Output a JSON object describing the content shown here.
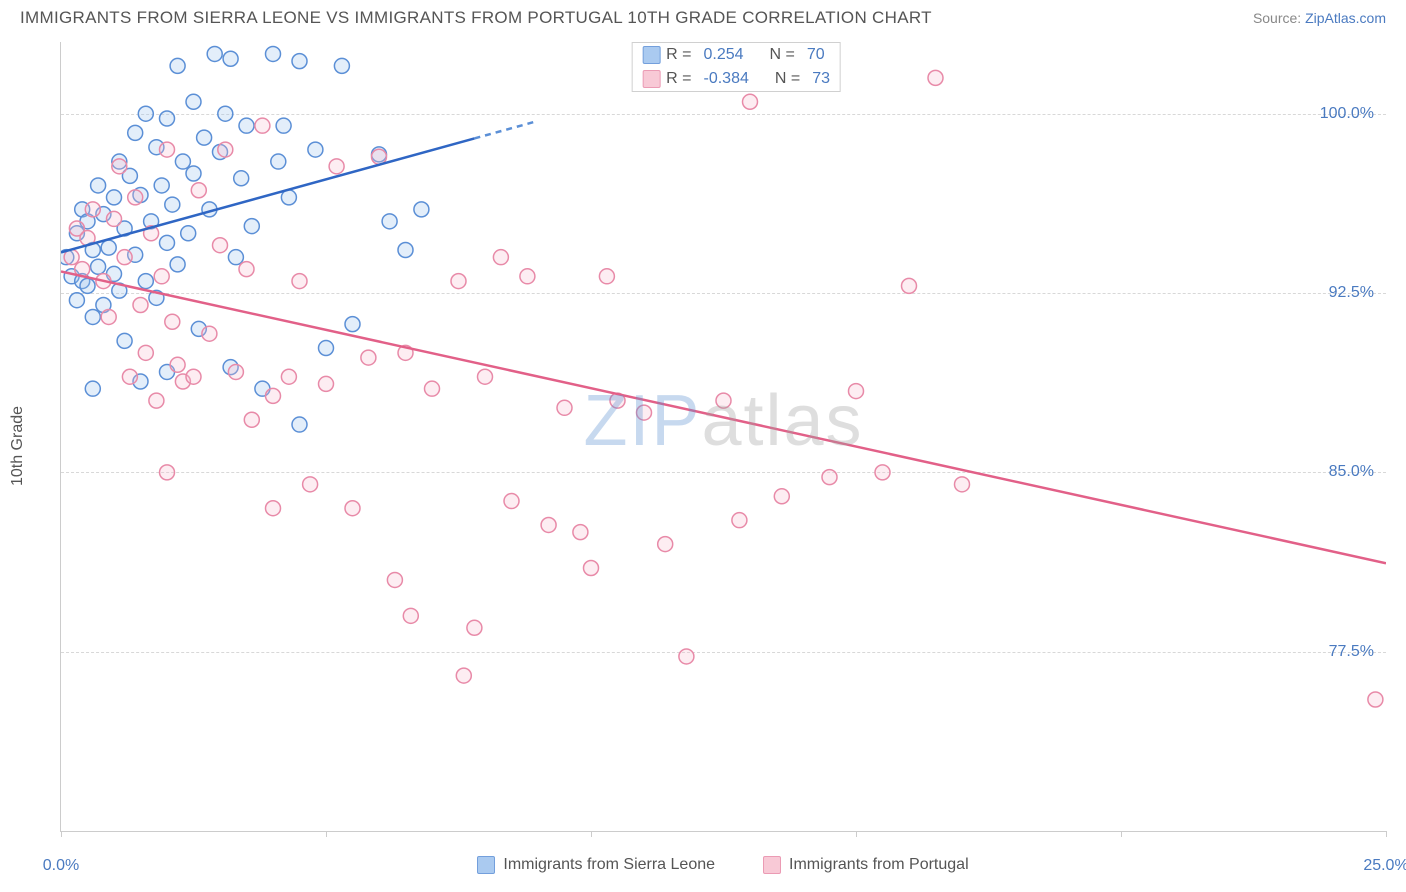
{
  "title": "IMMIGRANTS FROM SIERRA LEONE VS IMMIGRANTS FROM PORTUGAL 10TH GRADE CORRELATION CHART",
  "source_label": "Source:",
  "source_name": "ZipAtlas.com",
  "y_axis_title": "10th Grade",
  "watermark": {
    "part1": "ZIP",
    "part2": "atlas"
  },
  "chart": {
    "type": "scatter",
    "xlim": [
      0,
      25
    ],
    "ylim": [
      70,
      103
    ],
    "x_ticks": [
      0,
      5,
      10,
      15,
      20,
      25
    ],
    "x_tick_labels": {
      "0": "0.0%",
      "25": "25.0%"
    },
    "y_ticks": [
      77.5,
      85.0,
      92.5,
      100.0
    ],
    "y_tick_labels": [
      "77.5%",
      "85.0%",
      "92.5%",
      "100.0%"
    ],
    "grid_color": "#d8d8d8",
    "axis_color": "#cccccc",
    "background_color": "#ffffff",
    "marker_radius": 7.5,
    "marker_stroke_width": 1.5,
    "marker_fill_opacity": 0.28,
    "regression_line_width": 2.5,
    "series": [
      {
        "name": "Immigrants from Sierra Leone",
        "color_stroke": "#5b8fd6",
        "color_fill": "#9cc1ee",
        "R": 0.254,
        "N": 70,
        "regression": {
          "x1": 0,
          "y1": 94.2,
          "x2": 9.0,
          "y2": 99.7,
          "dash_x1": 7.8,
          "solid_color": "#2f66c4",
          "dash_color": "#5b8fd6"
        },
        "points": [
          [
            0.1,
            94.0
          ],
          [
            0.2,
            93.2
          ],
          [
            0.3,
            95.0
          ],
          [
            0.3,
            92.2
          ],
          [
            0.4,
            96.0
          ],
          [
            0.4,
            93.0
          ],
          [
            0.5,
            92.8
          ],
          [
            0.5,
            95.5
          ],
          [
            0.6,
            94.3
          ],
          [
            0.6,
            91.5
          ],
          [
            0.7,
            93.6
          ],
          [
            0.7,
            97.0
          ],
          [
            0.8,
            95.8
          ],
          [
            0.8,
            92.0
          ],
          [
            0.9,
            94.4
          ],
          [
            1.0,
            93.3
          ],
          [
            1.0,
            96.5
          ],
          [
            1.1,
            98.0
          ],
          [
            1.1,
            92.6
          ],
          [
            1.2,
            95.2
          ],
          [
            1.2,
            90.5
          ],
          [
            1.3,
            97.4
          ],
          [
            1.4,
            94.1
          ],
          [
            1.4,
            99.2
          ],
          [
            1.5,
            96.6
          ],
          [
            1.6,
            93.0
          ],
          [
            1.6,
            100.0
          ],
          [
            1.7,
            95.5
          ],
          [
            1.8,
            98.6
          ],
          [
            1.8,
            92.3
          ],
          [
            1.9,
            97.0
          ],
          [
            2.0,
            99.8
          ],
          [
            2.0,
            94.6
          ],
          [
            2.1,
            96.2
          ],
          [
            2.2,
            102.0
          ],
          [
            2.2,
            93.7
          ],
          [
            2.3,
            98.0
          ],
          [
            2.4,
            95.0
          ],
          [
            2.5,
            100.5
          ],
          [
            2.5,
            97.5
          ],
          [
            2.6,
            91.0
          ],
          [
            2.7,
            99.0
          ],
          [
            2.8,
            96.0
          ],
          [
            2.9,
            102.5
          ],
          [
            3.0,
            98.4
          ],
          [
            3.1,
            100.0
          ],
          [
            3.2,
            102.3
          ],
          [
            3.3,
            94.0
          ],
          [
            3.4,
            97.3
          ],
          [
            3.5,
            99.5
          ],
          [
            3.6,
            95.3
          ],
          [
            3.8,
            88.5
          ],
          [
            4.0,
            102.5
          ],
          [
            4.1,
            98.0
          ],
          [
            4.2,
            99.5
          ],
          [
            4.3,
            96.5
          ],
          [
            4.5,
            102.2
          ],
          [
            4.5,
            87.0
          ],
          [
            4.8,
            98.5
          ],
          [
            5.0,
            90.2
          ],
          [
            5.3,
            102.0
          ],
          [
            5.5,
            91.2
          ],
          [
            6.0,
            98.3
          ],
          [
            6.2,
            95.5
          ],
          [
            6.5,
            94.3
          ],
          [
            6.8,
            96.0
          ],
          [
            3.2,
            89.4
          ],
          [
            2.0,
            89.2
          ],
          [
            1.5,
            88.8
          ],
          [
            0.6,
            88.5
          ]
        ]
      },
      {
        "name": "Immigrants from Portugal",
        "color_stroke": "#e88aa8",
        "color_fill": "#f7c0d0",
        "R": -0.384,
        "N": 73,
        "regression": {
          "x1": 0,
          "y1": 93.4,
          "x2": 25.0,
          "y2": 81.2,
          "solid_color": "#e26088"
        },
        "points": [
          [
            0.2,
            94.0
          ],
          [
            0.3,
            95.2
          ],
          [
            0.4,
            93.5
          ],
          [
            0.5,
            94.8
          ],
          [
            0.6,
            96.0
          ],
          [
            0.8,
            93.0
          ],
          [
            0.9,
            91.5
          ],
          [
            1.0,
            95.6
          ],
          [
            1.1,
            97.8
          ],
          [
            1.2,
            94.0
          ],
          [
            1.3,
            89.0
          ],
          [
            1.4,
            96.5
          ],
          [
            1.5,
            92.0
          ],
          [
            1.6,
            90.0
          ],
          [
            1.7,
            95.0
          ],
          [
            1.8,
            88.0
          ],
          [
            1.9,
            93.2
          ],
          [
            2.0,
            98.5
          ],
          [
            2.1,
            91.3
          ],
          [
            2.2,
            89.5
          ],
          [
            2.3,
            88.8
          ],
          [
            2.5,
            89.0
          ],
          [
            2.6,
            96.8
          ],
          [
            2.8,
            90.8
          ],
          [
            3.0,
            94.5
          ],
          [
            3.1,
            98.5
          ],
          [
            3.3,
            89.2
          ],
          [
            3.5,
            93.5
          ],
          [
            3.6,
            87.2
          ],
          [
            3.8,
            99.5
          ],
          [
            4.0,
            88.2
          ],
          [
            4.3,
            89.0
          ],
          [
            4.5,
            93.0
          ],
          [
            4.7,
            84.5
          ],
          [
            5.0,
            88.7
          ],
          [
            5.2,
            97.8
          ],
          [
            5.5,
            83.5
          ],
          [
            5.8,
            89.8
          ],
          [
            6.0,
            98.2
          ],
          [
            6.5,
            90.0
          ],
          [
            6.6,
            79.0
          ],
          [
            7.0,
            88.5
          ],
          [
            7.5,
            93.0
          ],
          [
            7.6,
            76.5
          ],
          [
            7.8,
            78.5
          ],
          [
            8.0,
            89.0
          ],
          [
            8.3,
            94.0
          ],
          [
            8.5,
            83.8
          ],
          [
            8.8,
            93.2
          ],
          [
            9.2,
            82.8
          ],
          [
            9.5,
            87.7
          ],
          [
            9.8,
            82.5
          ],
          [
            10.0,
            81.0
          ],
          [
            10.3,
            93.2
          ],
          [
            10.5,
            88.0
          ],
          [
            11.0,
            87.5
          ],
          [
            11.4,
            82.0
          ],
          [
            11.8,
            77.3
          ],
          [
            12.5,
            88.0
          ],
          [
            12.8,
            83.0
          ],
          [
            13.0,
            100.5
          ],
          [
            13.6,
            84.0
          ],
          [
            14.1,
            102.0
          ],
          [
            14.5,
            84.8
          ],
          [
            15.0,
            88.4
          ],
          [
            15.5,
            85.0
          ],
          [
            16.0,
            92.8
          ],
          [
            16.5,
            101.5
          ],
          [
            17.0,
            84.5
          ],
          [
            4.0,
            83.5
          ],
          [
            2.0,
            85.0
          ],
          [
            24.8,
            75.5
          ],
          [
            6.3,
            80.5
          ]
        ]
      }
    ]
  },
  "top_legend": {
    "rows": [
      {
        "series": 0,
        "r_label": "R =",
        "n_label": "N ="
      },
      {
        "series": 1,
        "r_label": "R =",
        "n_label": "N ="
      }
    ]
  },
  "bottom_legend": {
    "items": [
      {
        "series": 0
      },
      {
        "series": 1
      }
    ]
  }
}
